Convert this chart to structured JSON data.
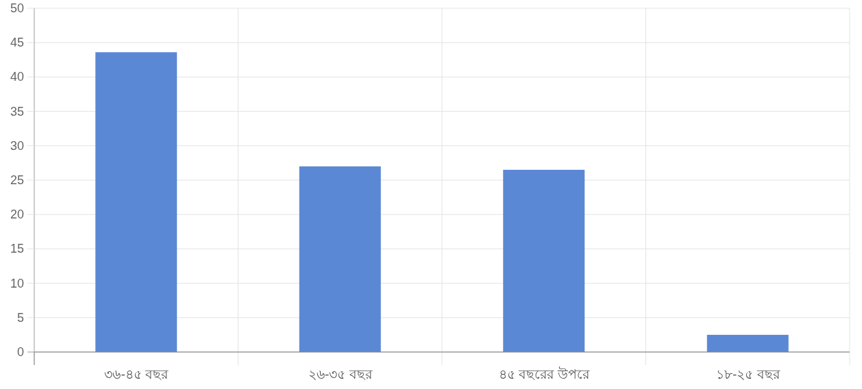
{
  "chart_data": {
    "type": "bar",
    "categories": [
      "৩৬-৪৫ বছর",
      "২৬-৩৫ বছর",
      "৪৫ বছরের উপরে",
      "১৮-২৫ বছর"
    ],
    "values": [
      43.6,
      27,
      26.5,
      2.5
    ],
    "color": "#5b88d4",
    "ylim": [
      0,
      50
    ],
    "yticks": [
      0,
      5,
      10,
      15,
      20,
      25,
      30,
      35,
      40,
      45,
      50
    ],
    "grid": true
  }
}
